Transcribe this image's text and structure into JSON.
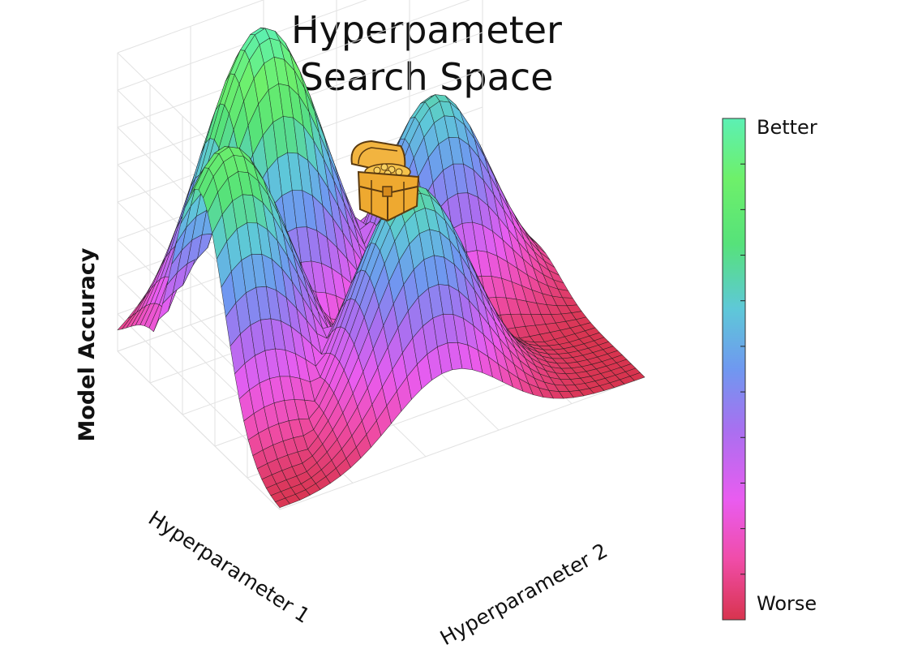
{
  "title": {
    "line1": "Hyperpameter",
    "line2": "Search Space"
  },
  "chart_data": {
    "type": "surface",
    "zlabel": "Model Accuracy",
    "xlabel": "Hyperparameter 1",
    "ylabel": "Hyperparameter 2",
    "colorbar": {
      "top_label": "Better",
      "bottom_label": "Worse",
      "colors": [
        "#5cf0b4",
        "#6ef06a",
        "#56e27a",
        "#5ec8d8",
        "#6f98f0",
        "#a870f0",
        "#e95cf0",
        "#f04ca8",
        "#d8344e"
      ]
    },
    "peaks": [
      {
        "name": "tallest peak (treasure)",
        "height": 1.0
      },
      {
        "name": "left peak",
        "height": 0.85
      },
      {
        "name": "right peak",
        "height": 0.68
      },
      {
        "name": "front peak",
        "height": 0.7
      }
    ],
    "grid": true,
    "annotation_icon": "treasure-chest-icon"
  }
}
